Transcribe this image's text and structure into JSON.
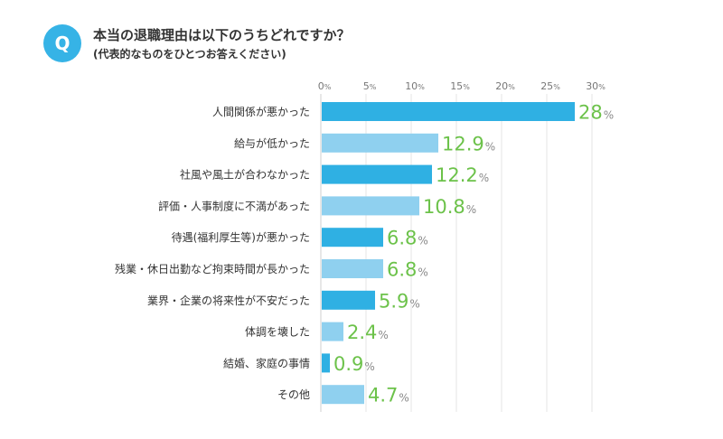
{
  "header": {
    "badge": "Q",
    "title": "本当の退職理由は以下のうちどれですか？",
    "subtitle": "(代表的なものをひとつお答えください)"
  },
  "colors": {
    "badge": "#36b3e6",
    "bar_dark": "#2fb0e3",
    "bar_light": "#8fd0ef",
    "value_text": "#6cc24a"
  },
  "chart_data": {
    "type": "bar",
    "orientation": "horizontal",
    "title": "本当の退職理由は以下のうちどれですか？",
    "categories": [
      "人間関係が悪かった",
      "給与が低かった",
      "社風や風土が合わなかった",
      "評価・人事制度に不満があった",
      "待遇(福利厚生等)が悪かった",
      "残業・休日出勤など拘束時間が長かった",
      "業界・企業の将来性が不安だった",
      "体調を壊した",
      "結婚、家庭の事情",
      "その他"
    ],
    "values": [
      28,
      12.9,
      12.2,
      10.8,
      6.8,
      6.8,
      5.9,
      2.4,
      0.9,
      4.7
    ],
    "value_labels": [
      "28",
      "12.9",
      "12.2",
      "10.8",
      "6.8",
      "6.8",
      "5.9",
      "2.4",
      "0.9",
      "4.7"
    ],
    "unit": "%",
    "xlim": [
      0,
      30
    ],
    "ticks": [
      0,
      5,
      10,
      15,
      20,
      25,
      30
    ],
    "tick_labels": [
      "0",
      "5",
      "10",
      "15",
      "20",
      "25",
      "30"
    ],
    "grid": true
  }
}
